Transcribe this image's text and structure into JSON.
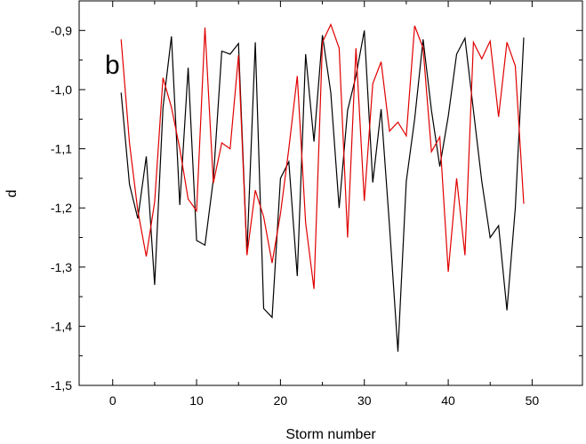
{
  "chart_data": {
    "type": "line",
    "title": "",
    "panel_label": "b",
    "xlabel": "Storm number",
    "ylabel": "d",
    "xlim": [
      -4,
      56
    ],
    "ylim": [
      -1.5,
      -0.85
    ],
    "x_ticks": [
      0,
      10,
      20,
      30,
      40,
      50
    ],
    "x_tick_labels": [
      "0",
      "10",
      "20",
      "30",
      "40",
      "50"
    ],
    "y_ticks": [
      -1.5,
      -1.4,
      -1.3,
      -1.2,
      -1.1,
      -1.0,
      -0.9
    ],
    "y_tick_labels": [
      "-1,5",
      "-1,4",
      "-1,3",
      "-1,2",
      "-1,1",
      "-1,0",
      "-0,9"
    ],
    "grid": false,
    "series": [
      {
        "color": "#000000",
        "x": [
          1,
          2,
          3,
          4,
          5,
          6,
          7,
          8,
          9,
          10,
          11,
          12,
          13,
          14,
          15,
          16,
          17,
          18,
          19,
          20,
          21,
          22,
          23,
          24,
          25,
          26,
          27,
          28,
          29,
          30,
          31,
          32,
          33,
          34,
          35,
          36,
          37,
          38,
          39,
          40,
          41,
          42,
          43,
          44,
          45,
          46,
          47,
          48,
          49
        ],
        "values": [
          -1.005,
          -1.16,
          -1.218,
          -1.113,
          -1.33,
          -1.03,
          -0.91,
          -1.195,
          -0.963,
          -1.255,
          -1.263,
          -1.152,
          -0.935,
          -0.94,
          -0.922,
          -1.277,
          -0.92,
          -1.37,
          -1.385,
          -1.15,
          -1.122,
          -1.315,
          -0.94,
          -1.088,
          -0.908,
          -1.005,
          -1.2,
          -1.035,
          -0.977,
          -0.9,
          -1.157,
          -1.033,
          -1.23,
          -1.443,
          -1.155,
          -1.05,
          -0.915,
          -1.035,
          -1.13,
          -1.045,
          -0.94,
          -0.913,
          -1.035,
          -1.155,
          -1.25,
          -1.23,
          -1.373,
          -1.2,
          -0.912
        ]
      },
      {
        "color": "#e00000",
        "x": [
          1,
          2,
          3,
          4,
          5,
          6,
          7,
          8,
          9,
          10,
          11,
          12,
          13,
          14,
          15,
          16,
          17,
          18,
          19,
          20,
          21,
          22,
          23,
          24,
          25,
          26,
          27,
          28,
          29,
          30,
          31,
          32,
          33,
          34,
          35,
          36,
          37,
          38,
          39,
          40,
          41,
          42,
          43,
          44,
          45,
          46,
          47,
          48,
          49
        ],
        "values": [
          -0.915,
          -1.09,
          -1.205,
          -1.282,
          -1.19,
          -0.98,
          -1.03,
          -1.1,
          -1.185,
          -1.205,
          -0.895,
          -1.158,
          -1.09,
          -1.1,
          -0.942,
          -1.28,
          -1.17,
          -1.215,
          -1.293,
          -1.21,
          -1.1,
          -0.977,
          -1.225,
          -1.337,
          -0.92,
          -0.89,
          -0.93,
          -1.25,
          -0.93,
          -1.188,
          -0.99,
          -0.953,
          -1.07,
          -1.055,
          -1.078,
          -0.892,
          -0.93,
          -1.105,
          -1.08,
          -1.308,
          -1.15,
          -1.28,
          -0.92,
          -0.948,
          -0.918,
          -1.046,
          -0.92,
          -0.96,
          -1.193
        ]
      }
    ]
  }
}
